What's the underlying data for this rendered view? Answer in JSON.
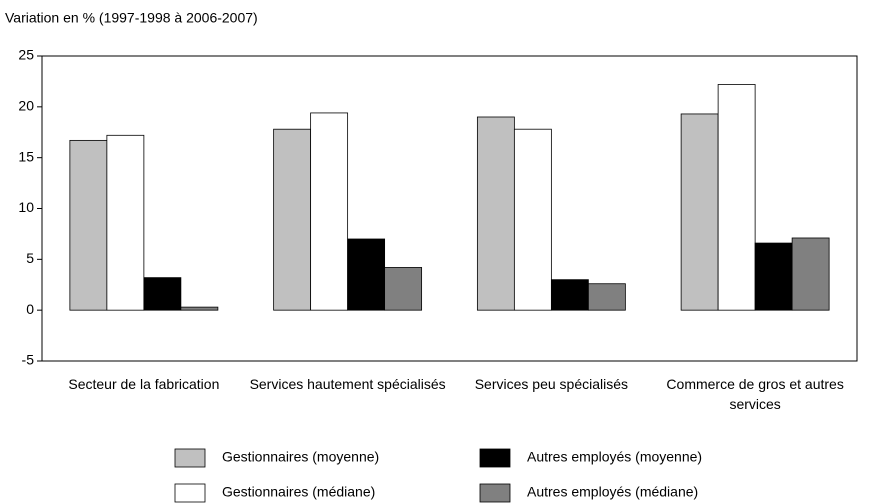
{
  "chart_data": {
    "type": "bar",
    "y_axis_label": "Variation en %  (1997-1998 à 2006-2007)",
    "categories": [
      "Secteur de la fabrication",
      "Services hautement spécialisés",
      "Services peu spécialisés",
      "Commerce de gros et autres services"
    ],
    "series": [
      {
        "name": "Gestionnaires (moyenne)",
        "color": "#c0c0c0",
        "values": [
          16.7,
          17.8,
          19.0,
          19.3
        ]
      },
      {
        "name": "Gestionnaires (médiane)",
        "color": "#ffffff",
        "values": [
          17.2,
          19.4,
          17.8,
          22.2
        ]
      },
      {
        "name": "Autres employés (moyenne)",
        "color": "#000000",
        "values": [
          3.2,
          7.0,
          3.0,
          6.6
        ]
      },
      {
        "name": "Autres employés (médiane)",
        "color": "#808080",
        "values": [
          0.3,
          4.2,
          2.6,
          7.1
        ]
      }
    ],
    "ylim": [
      -5,
      25
    ],
    "yticks": [
      -5,
      0,
      5,
      10,
      15,
      20,
      25
    ],
    "grid": false
  }
}
